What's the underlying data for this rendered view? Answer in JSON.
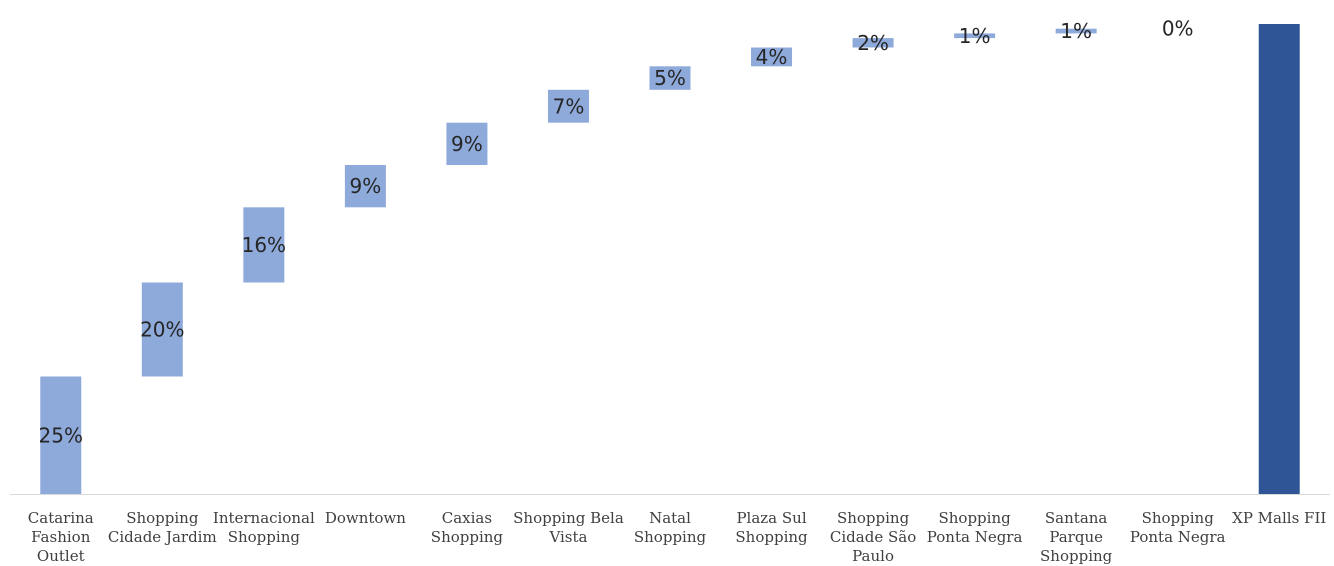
{
  "chart_data": {
    "type": "bar",
    "subtype": "waterfall",
    "categories": [
      "Catarina Fashion Outlet",
      "Shopping Cidade Jardim",
      "Internacional Shopping",
      "Downtown",
      "Caxias Shopping",
      "Shopping Bela Vista",
      "Natal Shopping",
      "Plaza Sul Shopping",
      "Shopping Cidade São Paulo",
      "Shopping Ponta Negra",
      "Santana Parque Shopping",
      "Shopping Ponta Negra",
      "XP Malls FII"
    ],
    "values": [
      25,
      20,
      16,
      9,
      9,
      7,
      5,
      4,
      2,
      1,
      1,
      0,
      100
    ],
    "data_labels": [
      "25%",
      "20%",
      "16%",
      "9%",
      "9%",
      "7%",
      "5%",
      "4%",
      "2%",
      "1%",
      "1%",
      "0%",
      ""
    ],
    "total_index": 12,
    "ylim": [
      0,
      100
    ],
    "title": "",
    "xlabel": "",
    "ylabel": "",
    "grid": false,
    "legend": false,
    "colors": {
      "step": "#8eaadb",
      "total": "#2f5597",
      "axis": "#d9d9d9"
    }
  }
}
